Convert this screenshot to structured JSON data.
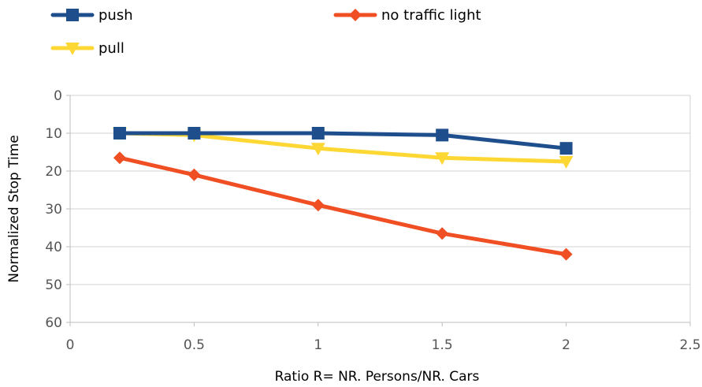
{
  "chart_data": {
    "type": "line",
    "title": "",
    "xlabel": "Ratio R= NR. Persons/NR. Cars",
    "ylabel": "Normalized Stop Time",
    "xlim": [
      0,
      2.5
    ],
    "ylim": [
      0,
      60
    ],
    "y_reversed": true,
    "xticks": [
      0,
      0.5,
      1,
      1.5,
      2,
      2.5
    ],
    "xtick_labels": [
      "0",
      "0.5",
      "1",
      "1.5",
      "2",
      "2.5"
    ],
    "yticks": [
      0,
      10,
      20,
      30,
      40,
      50,
      60
    ],
    "ytick_labels": [
      "0",
      "10",
      "20",
      "30",
      "40",
      "50",
      "60"
    ],
    "grid": "horizontal",
    "legend_position": "top",
    "series": [
      {
        "name": "push",
        "color": "#1f4e8c",
        "marker": "square",
        "x": [
          0.2,
          0.5,
          1,
          1.5,
          2
        ],
        "y": [
          10,
          10,
          10,
          10.5,
          14
        ]
      },
      {
        "name": "no traffic light",
        "color": "#f04e23",
        "marker": "diamond",
        "x": [
          0.2,
          0.5,
          1,
          1.5,
          2
        ],
        "y": [
          16.5,
          21,
          29,
          36.5,
          42
        ]
      },
      {
        "name": "pull",
        "color": "#fdd835",
        "marker": "triangle-down",
        "x": [
          0.2,
          0.5,
          1,
          1.5,
          2
        ],
        "y": [
          10,
          10.5,
          14,
          16.5,
          17.5
        ]
      }
    ]
  }
}
